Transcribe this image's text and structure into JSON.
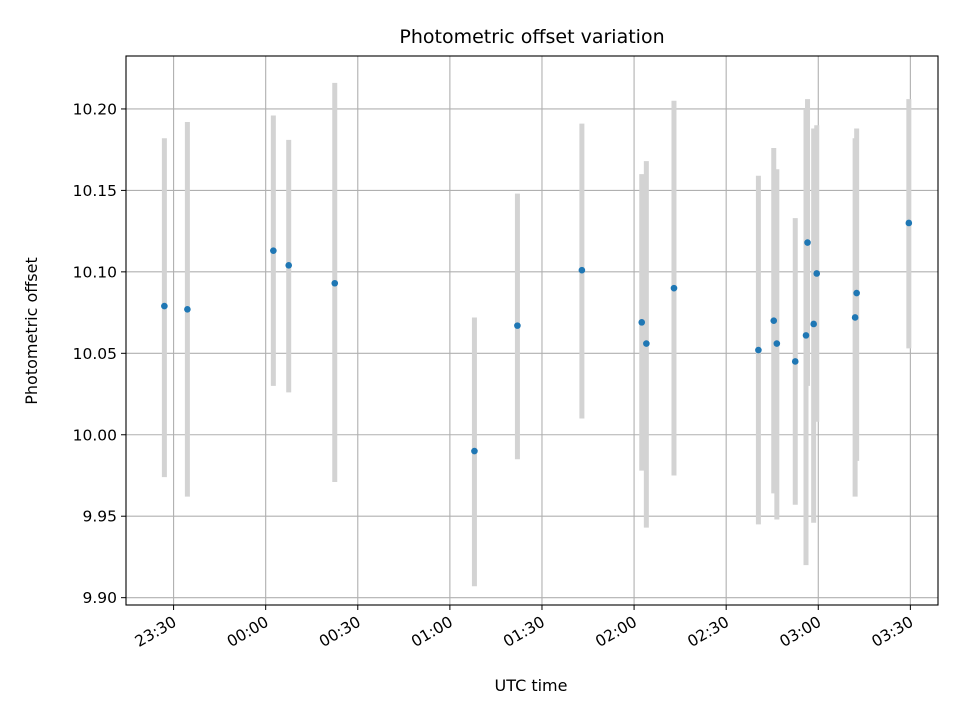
{
  "chart_data": {
    "type": "scatter",
    "title": "Photometric offset variation",
    "xlabel": "UTC time",
    "ylabel": "Photometric offset",
    "x_axis_kind": "time",
    "x_reference_time": "23:30",
    "x_ticks": [
      "23:30",
      "00:00",
      "00:30",
      "01:00",
      "01:30",
      "02:00",
      "02:30",
      "03:00",
      "03:30"
    ],
    "y_ticks": [
      "9.90",
      "9.95",
      "10.00",
      "10.05",
      "10.10",
      "10.15",
      "10.20"
    ],
    "xlim_minutes": [
      -15.5,
      249
    ],
    "ylim": [
      9.8955,
      10.2325
    ],
    "grid": true,
    "marker_color": "#1f77b4",
    "errorbar_color": "#d3d3d3",
    "series": [
      {
        "points": [
          {
            "t": -3,
            "y": 10.079,
            "lo": 9.974,
            "hi": 10.182
          },
          {
            "t": 4.5,
            "y": 10.077,
            "lo": 9.962,
            "hi": 10.192
          },
          {
            "t": 32.5,
            "y": 10.113,
            "lo": 10.03,
            "hi": 10.196
          },
          {
            "t": 37.5,
            "y": 10.104,
            "lo": 10.026,
            "hi": 10.181
          },
          {
            "t": 52.5,
            "y": 10.093,
            "lo": 9.971,
            "hi": 10.216
          },
          {
            "t": 98,
            "y": 9.99,
            "lo": 9.907,
            "hi": 10.072
          },
          {
            "t": 112,
            "y": 10.067,
            "lo": 9.985,
            "hi": 10.148
          },
          {
            "t": 133,
            "y": 10.101,
            "lo": 10.01,
            "hi": 10.191
          },
          {
            "t": 152.5,
            "y": 10.069,
            "lo": 9.978,
            "hi": 10.16
          },
          {
            "t": 154,
            "y": 10.056,
            "lo": 9.943,
            "hi": 10.168
          },
          {
            "t": 163,
            "y": 10.09,
            "lo": 9.975,
            "hi": 10.205
          },
          {
            "t": 190.5,
            "y": 10.052,
            "lo": 9.945,
            "hi": 10.159
          },
          {
            "t": 195.5,
            "y": 10.07,
            "lo": 9.964,
            "hi": 10.176
          },
          {
            "t": 196.5,
            "y": 10.056,
            "lo": 9.948,
            "hi": 10.163
          },
          {
            "t": 202.5,
            "y": 10.045,
            "lo": 9.957,
            "hi": 10.133
          },
          {
            "t": 206,
            "y": 10.061,
            "lo": 9.92,
            "hi": 10.2
          },
          {
            "t": 206.5,
            "y": 10.118,
            "lo": 10.03,
            "hi": 10.206
          },
          {
            "t": 208.5,
            "y": 10.068,
            "lo": 9.946,
            "hi": 10.188
          },
          {
            "t": 209.5,
            "y": 10.099,
            "lo": 10.008,
            "hi": 10.19
          },
          {
            "t": 222,
            "y": 10.072,
            "lo": 9.962,
            "hi": 10.182
          },
          {
            "t": 222.5,
            "y": 10.087,
            "lo": 9.984,
            "hi": 10.188
          },
          {
            "t": 239.5,
            "y": 10.13,
            "lo": 10.053,
            "hi": 10.206
          }
        ]
      }
    ]
  }
}
